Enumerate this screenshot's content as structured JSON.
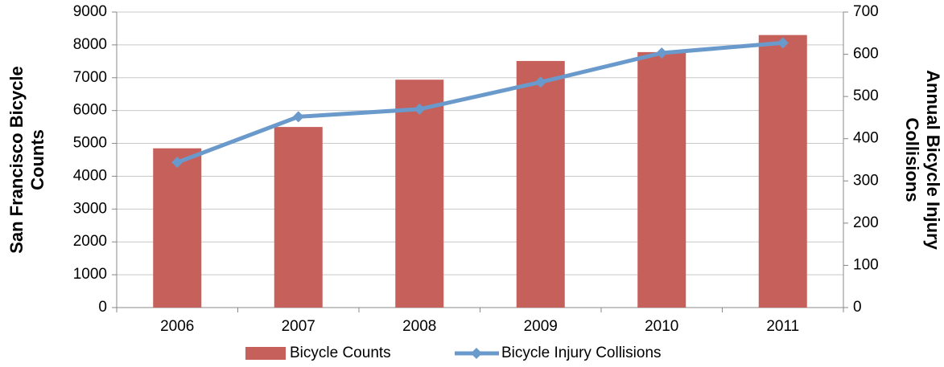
{
  "chart_data": {
    "type": "bar_line",
    "categories": [
      "2006",
      "2007",
      "2008",
      "2009",
      "2010",
      "2011"
    ],
    "series": [
      {
        "name": "Bicycle Counts",
        "type": "bar",
        "color": "#c6605b",
        "values": [
          4850,
          5500,
          6940,
          7510,
          7780,
          8300
        ]
      },
      {
        "name": "Bicycle Injury Collisions",
        "type": "line",
        "axis": "y2",
        "color": "#6a9acb",
        "values": [
          344,
          452,
          470,
          534,
          603,
          627
        ]
      }
    ],
    "ylabel": [
      "San Francisco Bicycle",
      "Counts"
    ],
    "y2label": [
      "Annual Bicycle Injury",
      "Collisions"
    ],
    "ylim": [
      0,
      9000
    ],
    "yticks": [
      0,
      1000,
      2000,
      3000,
      4000,
      5000,
      6000,
      7000,
      8000,
      9000
    ],
    "y2lim": [
      0,
      700
    ],
    "y2ticks": [
      0,
      100,
      200,
      300,
      400,
      500,
      600,
      700
    ],
    "grid": true,
    "legend": "bottom"
  }
}
